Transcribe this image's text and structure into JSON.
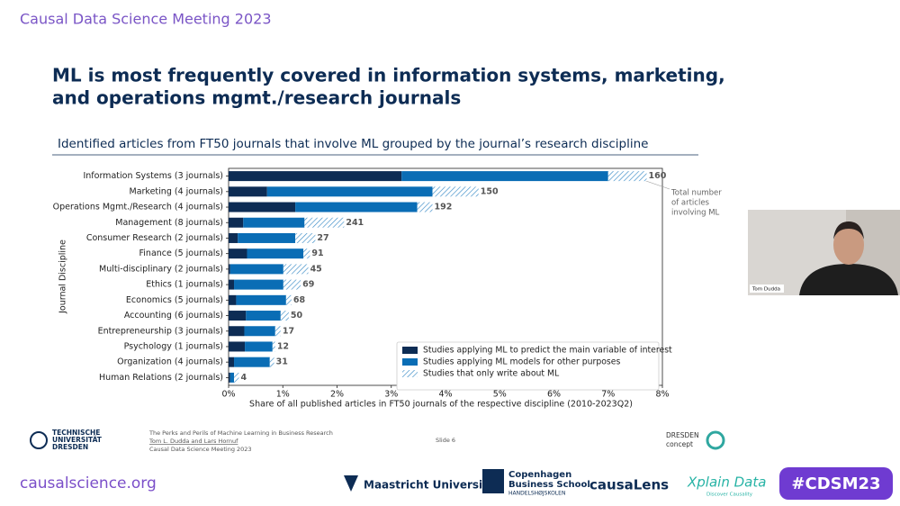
{
  "header": {
    "event": "Causal Data Science Meeting 2023"
  },
  "slide": {
    "title_lines": [
      "ML is most frequently covered in information systems, marketing,",
      "and operations mgmt./research journals"
    ],
    "subtitle": "Identified articles from FT50 journals that involve ML grouped by the journal’s research discipline"
  },
  "chart_data": {
    "type": "bar",
    "orientation": "horizontal",
    "stacked": true,
    "categories": [
      "Information Systems (3 journals)",
      "Marketing (4 journals)",
      "Operations Mgmt./Research (4 journals)",
      "Management (8 journals)",
      "Consumer Research (2 journals)",
      "Finance (5 journals)",
      "Multi-disciplinary (2 journals)",
      "Ethics (1 journals)",
      "Economics (5 journals)",
      "Accounting (6 journals)",
      "Entrepreneurship (3 journals)",
      "Psychology (1 journals)",
      "Organization (4 journals)",
      "Human Relations (2 journals)"
    ],
    "series": [
      {
        "name": "Studies applying ML to predict the main variable of interest",
        "color": "#0d2c54",
        "values": [
          3.19,
          0.71,
          1.23,
          0.27,
          0.17,
          0.34,
          0.03,
          0.1,
          0.14,
          0.32,
          0.29,
          0.3,
          0.1,
          0.03
        ]
      },
      {
        "name": "Studies applying ML models for other purposes",
        "color": "#0a6db5",
        "values": [
          3.81,
          3.05,
          2.25,
          1.13,
          1.06,
          1.04,
          0.98,
          0.91,
          0.92,
          0.64,
          0.57,
          0.51,
          0.66,
          0.07
        ]
      },
      {
        "name": "Studies that only write about ML",
        "color": "#3a8cc7",
        "hatch": true,
        "values": [
          0.71,
          0.85,
          0.28,
          0.73,
          0.37,
          0.12,
          0.46,
          0.32,
          0.1,
          0.15,
          0.1,
          0.05,
          0.08,
          0.09
        ]
      }
    ],
    "article_counts": [
      160,
      150,
      192,
      241,
      27,
      91,
      45,
      69,
      68,
      50,
      17,
      12,
      31,
      4
    ],
    "xlim": [
      0,
      8
    ],
    "xticks": [
      {
        "value": 0,
        "label": "0%"
      },
      {
        "value": 1,
        "label": "1%"
      },
      {
        "value": 2,
        "label": "2%"
      },
      {
        "value": 3,
        "label": "3%"
      },
      {
        "value": 4,
        "label": "4%"
      },
      {
        "value": 5,
        "label": "5%"
      },
      {
        "value": 6,
        "label": "6%"
      },
      {
        "value": 7,
        "label": "7%"
      },
      {
        "value": 8,
        "label": "8%"
      }
    ],
    "xlabel": "Share of all published articles in FT50 journals of the respective discipline (2010-2023Q2)",
    "ylabel": "Journal Discipline",
    "annotation_lines": [
      "Total number",
      "of articles",
      "involving ML"
    ],
    "legend": "lower right"
  },
  "footer": {
    "university_lines": [
      "TECHNISCHE",
      "UNIVERSITÄT",
      "DRESDEN"
    ],
    "talk_lines": [
      "The Perks and Perils of Machine Learning in Business Research",
      "Tom L. Dudda and Lars Hornuf",
      "Causal Data Science Meeting 2023"
    ],
    "slide_number": "Slide 6",
    "dresden_lines": [
      "DRESDEN",
      "concept"
    ]
  },
  "banner": {
    "site": "causalscience.org",
    "maastricht": "Maastricht University",
    "cbs_lines": [
      "Copenhagen",
      "Business School",
      "HANDELSHØJSKOLEN"
    ],
    "causalens": "causaLens",
    "xplain": "Xplain Data",
    "xplain_tag": "Discover Causality",
    "hashtag": "#CDSM23"
  },
  "webcam": {
    "name": "Tom Dudda"
  }
}
